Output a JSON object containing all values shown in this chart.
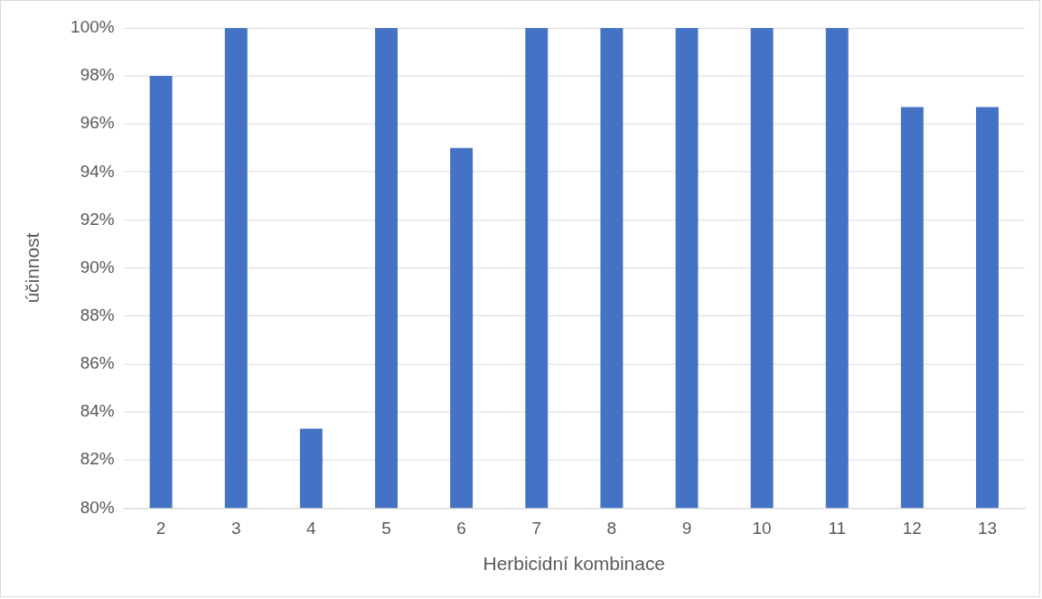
{
  "chart_data": {
    "type": "bar",
    "xlabel": "Herbicidní kombinace",
    "ylabel": "účinnost",
    "categories": [
      "2",
      "3",
      "4",
      "5",
      "6",
      "7",
      "8",
      "9",
      "10",
      "11",
      "12",
      "13"
    ],
    "values": [
      98,
      100,
      83.3,
      100,
      95,
      100,
      100,
      100,
      100,
      100,
      96.7,
      96.7
    ],
    "color": "#4472c4",
    "ylim": [
      80,
      100
    ],
    "yticks": [
      {
        "value": 80,
        "label": "80%"
      },
      {
        "value": 82,
        "label": "82%"
      },
      {
        "value": 84,
        "label": "84%"
      },
      {
        "value": 86,
        "label": "86%"
      },
      {
        "value": 88,
        "label": "88%"
      },
      {
        "value": 90,
        "label": "90%"
      },
      {
        "value": 92,
        "label": "92%"
      },
      {
        "value": 94,
        "label": "94%"
      },
      {
        "value": 96,
        "label": "96%"
      },
      {
        "value": 98,
        "label": "98%"
      },
      {
        "value": 100,
        "label": "100%"
      }
    ],
    "grid": "y"
  }
}
